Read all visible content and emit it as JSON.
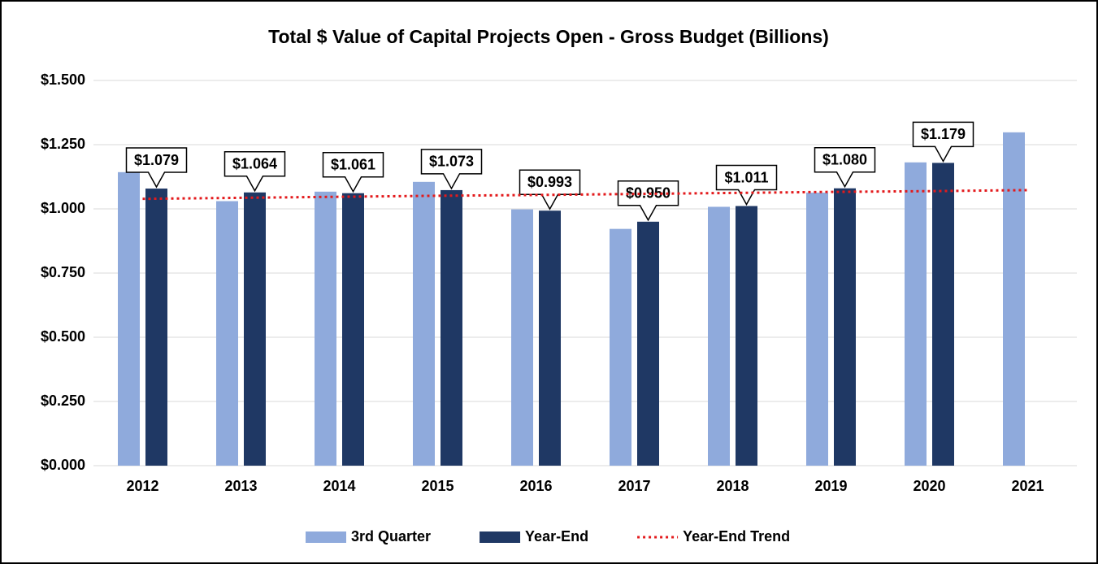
{
  "chart_data": {
    "type": "bar",
    "title": "Total $ Value of Capital Projects Open - Gross Budget (Billions)",
    "categories": [
      "2012",
      "2013",
      "2014",
      "2015",
      "2016",
      "2017",
      "2018",
      "2019",
      "2020",
      "2021"
    ],
    "series": [
      {
        "name": "3rd Quarter",
        "color": "#8faadc",
        "type": "bar",
        "values": [
          1.143,
          1.03,
          1.067,
          1.105,
          0.998,
          0.922,
          1.008,
          1.063,
          1.181,
          1.298
        ]
      },
      {
        "name": "Year-End",
        "color": "#1f3864",
        "type": "bar",
        "values": [
          1.079,
          1.064,
          1.061,
          1.073,
          0.993,
          0.95,
          1.011,
          1.08,
          1.179,
          null
        ],
        "value_labels": [
          "$1.079",
          "$1.064",
          "$1.061",
          "$1.073",
          "$0.993",
          "$0.950",
          "$1.011",
          "$1.080",
          "$1.179",
          null
        ]
      },
      {
        "name": "Year-End Trend",
        "color": "#e31a1c",
        "type": "line",
        "dash": "dotted",
        "values": [
          1.039,
          1.043,
          1.047,
          1.051,
          1.054,
          1.058,
          1.062,
          1.066,
          1.069,
          1.073
        ]
      }
    ],
    "ylim": [
      0,
      1.5
    ],
    "yticks": [
      {
        "value": 0,
        "label": "$0.000"
      },
      {
        "value": 0.25,
        "label": "$0.250"
      },
      {
        "value": 0.5,
        "label": "$0.500"
      },
      {
        "value": 0.75,
        "label": "$0.750"
      },
      {
        "value": 1,
        "label": "$1.000"
      },
      {
        "value": 1.25,
        "label": "$1.250"
      },
      {
        "value": 1.5,
        "label": "$1.500"
      }
    ],
    "grid": true,
    "legend": "bottom"
  }
}
